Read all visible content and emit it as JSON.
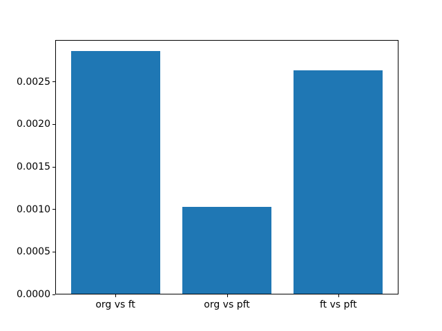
{
  "figure": {
    "background": "#ffffff",
    "axes_edge_color": "#000000",
    "text_color": "#000000"
  },
  "chart_data": {
    "type": "bar",
    "title": "",
    "xlabel": "",
    "ylabel": "",
    "categories": [
      "org vs ft",
      "org vs pft",
      "ft vs pft"
    ],
    "values": [
      0.00286,
      0.00103,
      0.00264
    ],
    "bar_color": "#1f77b4",
    "ylim": [
      0,
      0.002993
    ],
    "xlim": [
      -0.54,
      2.54
    ],
    "bar_width": 0.8,
    "yticks": [
      0.0,
      0.0005,
      0.001,
      0.0015,
      0.002,
      0.0025
    ],
    "ytick_labels": [
      "0.0000",
      "0.0005",
      "0.0010",
      "0.0015",
      "0.0020",
      "0.0025"
    ],
    "grid": false,
    "legend": null
  }
}
